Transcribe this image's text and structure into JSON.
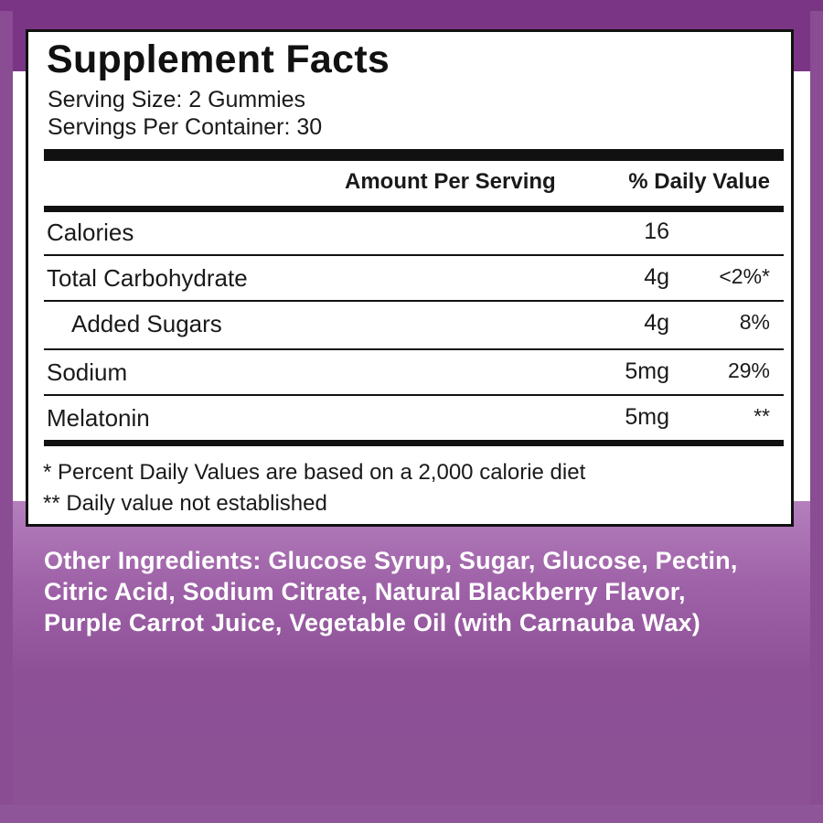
{
  "colors": {
    "background_purple": "#8b5193",
    "band_purple": "#7a3585",
    "panel_white": "#ffffff",
    "rule_black": "#111111",
    "ingredients_text": "#ffffff"
  },
  "facts": {
    "title": "Supplement Facts",
    "serving_size": "Serving Size: 2 Gummies",
    "servings_per_container": "Servings Per Container: 30",
    "header_amount": "Amount Per Serving",
    "header_daily_value": "% Daily Value",
    "rows": [
      {
        "name": "Calories",
        "amount": "16",
        "dv": ""
      },
      {
        "name": "Total Carbohydrate",
        "amount": "4g",
        "dv": "<2%*"
      },
      {
        "name": "Added Sugars",
        "amount": "4g",
        "dv": "8%"
      },
      {
        "name": "Sodium",
        "amount": "5mg",
        "dv": "29%"
      },
      {
        "name": "Melatonin",
        "amount": "5mg",
        "dv": "**"
      }
    ],
    "footnote_1": "* Percent Daily Values are based on a  2,000 calorie diet",
    "footnote_2": "** Daily value not established"
  },
  "ingredients": {
    "text": "Other Ingredients: Glucose Syrup, Sugar, Glucose, Pectin, Citric Acid, Sodium Citrate, Natural Blackberry Flavor, Purple Carrot Juice, Vegetable Oil (with Carnauba Wax)"
  }
}
